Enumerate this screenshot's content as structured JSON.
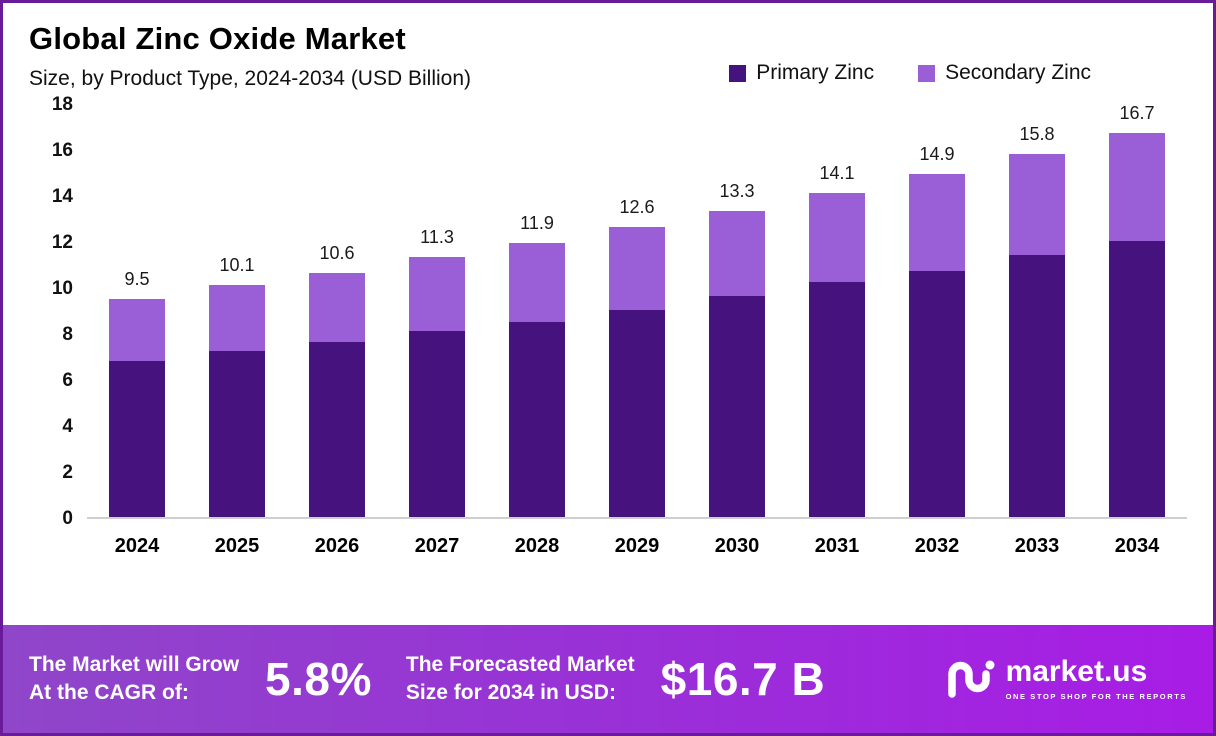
{
  "title": "Global Zinc Oxide Market",
  "subtitle": "Size, by Product Type, 2024-2034 (USD Billion)",
  "legend": [
    {
      "label": "Primary Zinc",
      "color": "#46127d"
    },
    {
      "label": "Secondary Zinc",
      "color": "#9a5fd6"
    }
  ],
  "chart_data": {
    "type": "bar",
    "stacked": true,
    "title": "Global Zinc Oxide Market Size, by Product Type, 2024-2034 (USD Billion)",
    "categories": [
      "2024",
      "2025",
      "2026",
      "2027",
      "2028",
      "2029",
      "2030",
      "2031",
      "2032",
      "2033",
      "2034"
    ],
    "series": [
      {
        "name": "Primary Zinc",
        "color": "#46127d",
        "values": [
          6.8,
          7.2,
          7.6,
          8.1,
          8.5,
          9.0,
          9.6,
          10.2,
          10.7,
          11.4,
          12.0
        ]
      },
      {
        "name": "Secondary Zinc",
        "color": "#9a5fd6",
        "values": [
          2.7,
          2.9,
          3.0,
          3.2,
          3.4,
          3.6,
          3.7,
          3.9,
          4.2,
          4.4,
          4.7
        ]
      }
    ],
    "totals": [
      9.5,
      10.1,
      10.6,
      11.3,
      11.9,
      12.6,
      13.3,
      14.1,
      14.9,
      15.8,
      16.7
    ],
    "total_labels": [
      "9.5",
      "10.1",
      "10.6",
      "11.3",
      "11.9",
      "12.6",
      "13.3",
      "14.1",
      "14.9",
      "15.8",
      "16.7"
    ],
    "xlabel": "",
    "ylabel": "",
    "ylim": [
      0,
      18
    ],
    "yticks": [
      0,
      2,
      4,
      6,
      8,
      10,
      12,
      14,
      16,
      18
    ],
    "grid": false,
    "legend_position": "top-right"
  },
  "footer": {
    "cagr_line1": "The Market will Grow",
    "cagr_line2": "At the CAGR of:",
    "cagr_value": "5.8%",
    "forecast_line1": "The Forecasted Market",
    "forecast_line2": "Size for 2034 in USD:",
    "forecast_value": "$16.7 B",
    "brand": "market.us",
    "tagline": "ONE STOP SHOP FOR THE REPORTS",
    "gradient_start": "#8f46c9",
    "gradient_end": "#a81ce6"
  }
}
